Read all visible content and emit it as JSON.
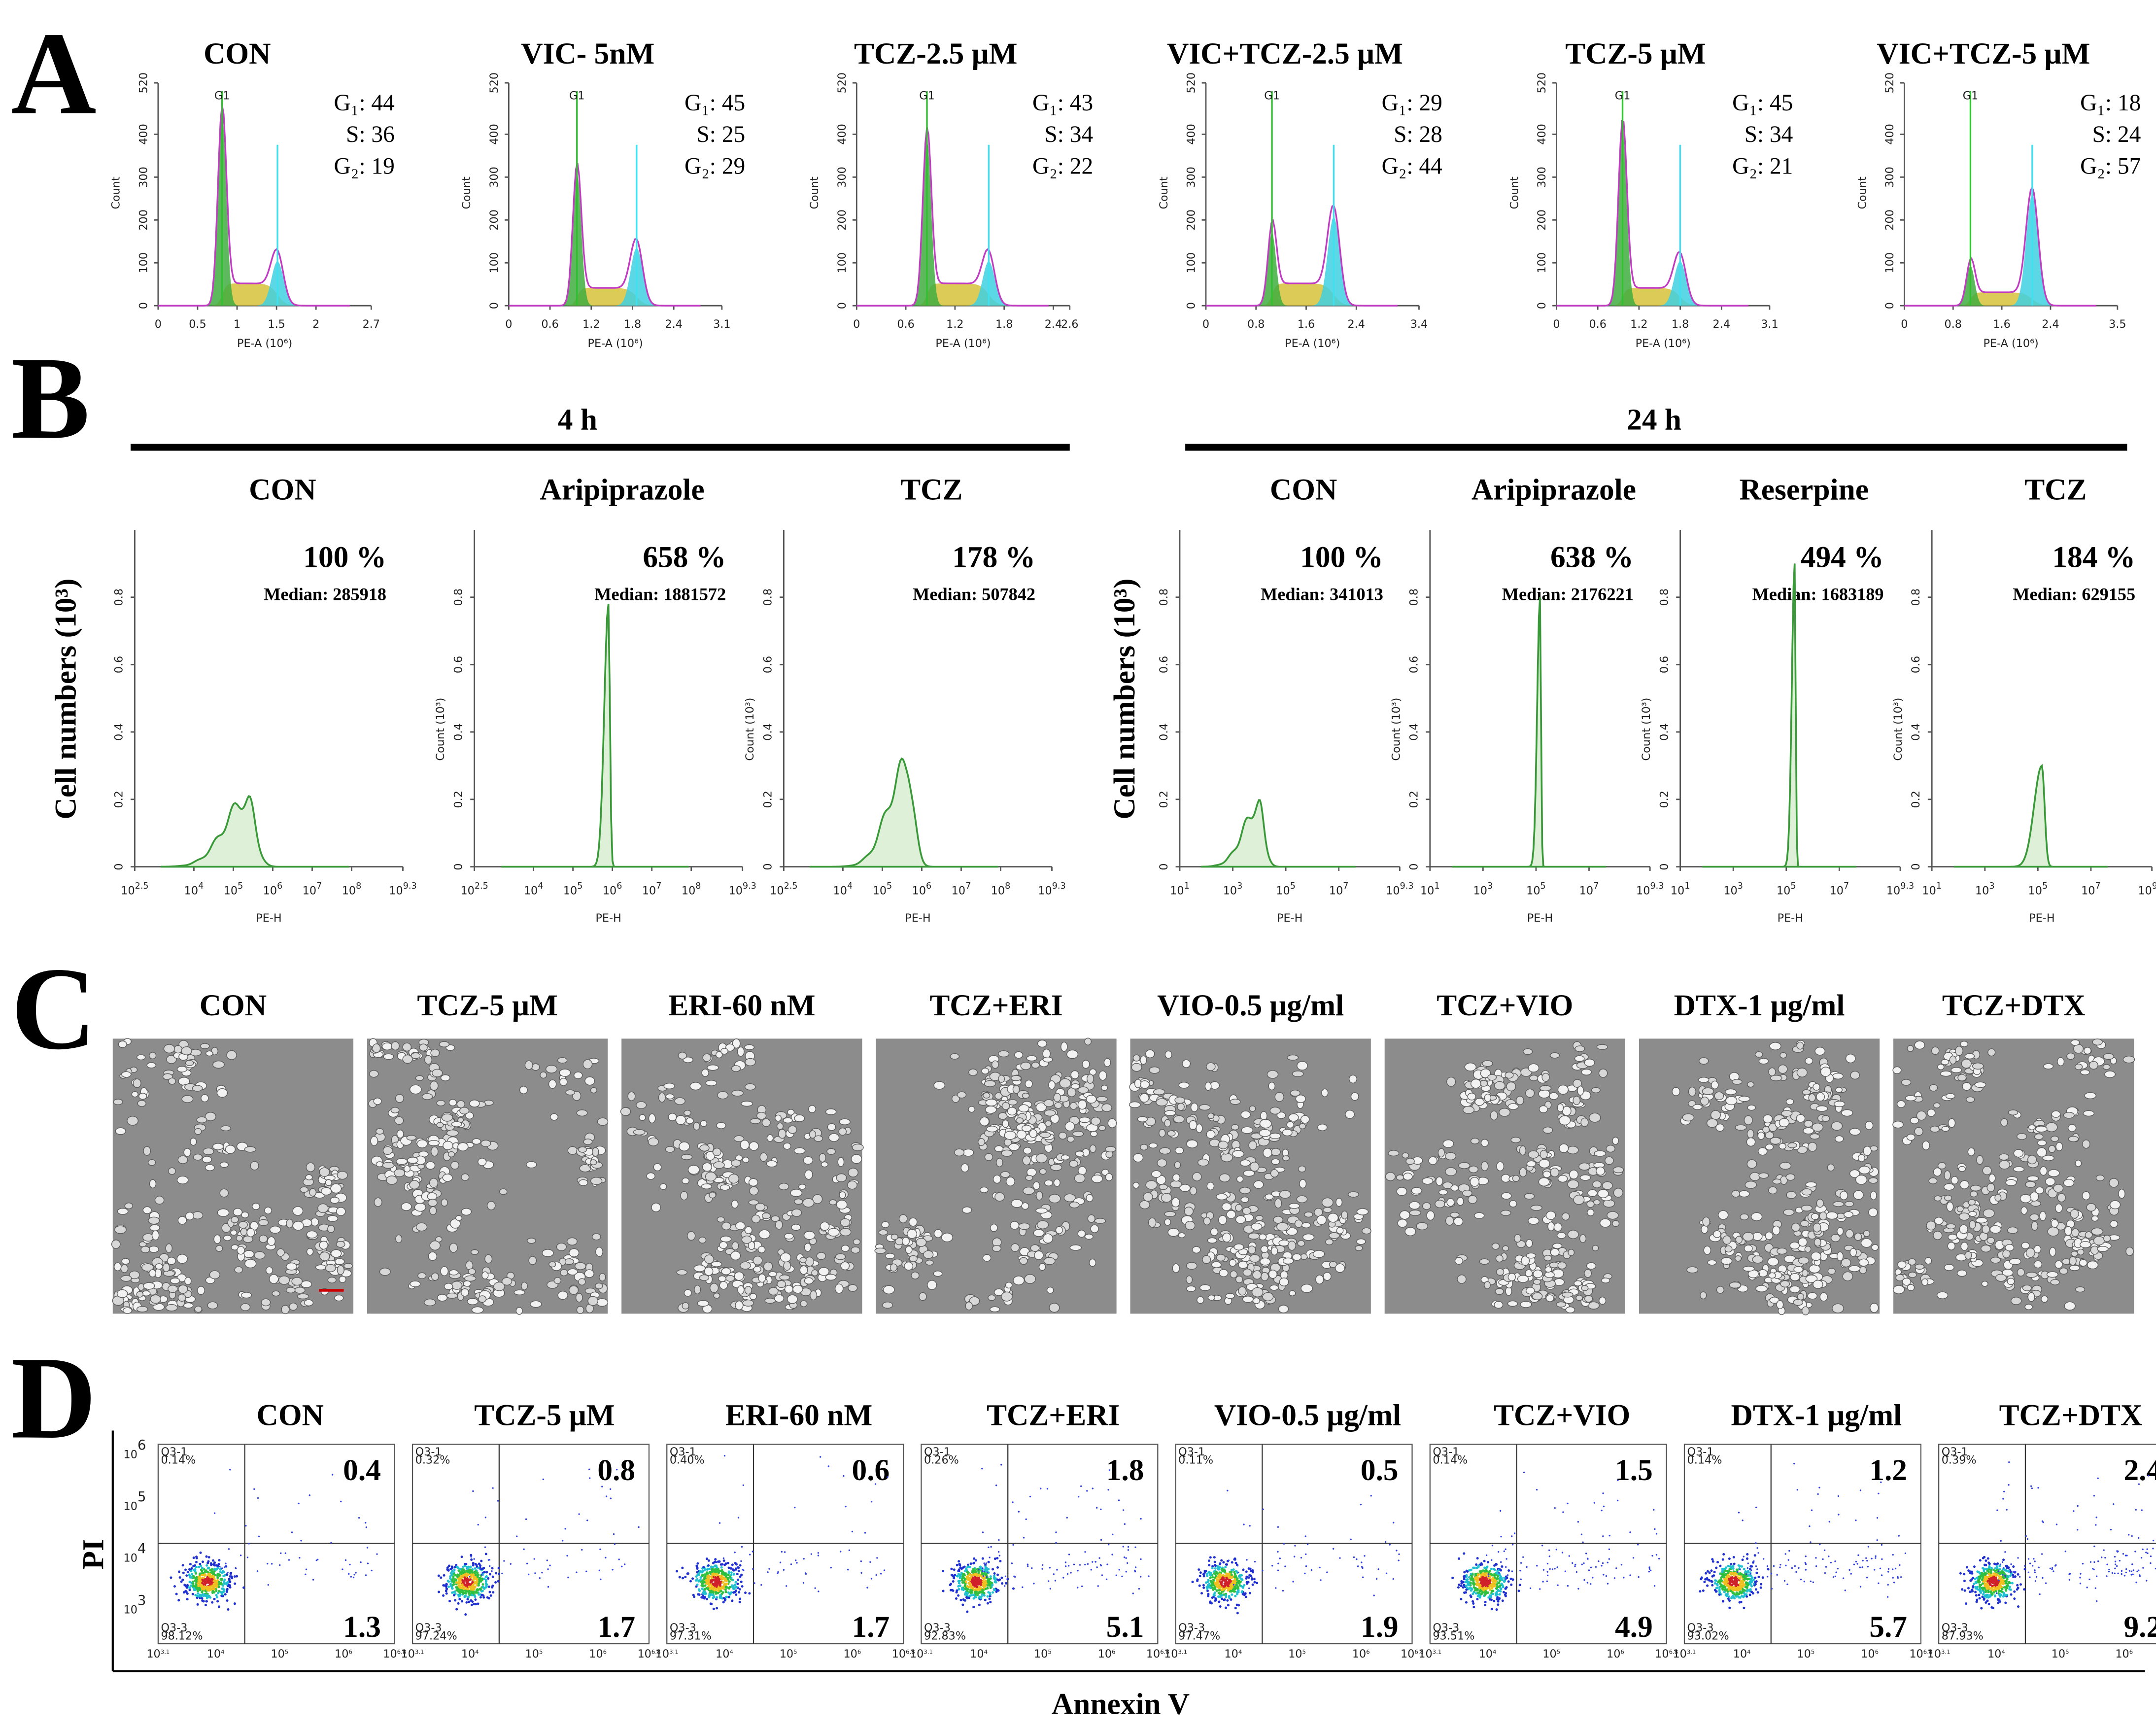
{
  "panel_A": {
    "label": "A",
    "y_label": "Count",
    "x_label": "PE-A (10⁶)",
    "peak_label": "G1",
    "yticks": [
      0,
      100,
      200,
      300,
      400,
      520
    ],
    "plots": [
      {
        "title": "CON",
        "stats": [
          "G₁: 44",
          "S: 36",
          "G₂: 19"
        ],
        "xticks": [
          0,
          0.5,
          1,
          1.5,
          2,
          2.7
        ]
      },
      {
        "title": "VIC- 5nM",
        "stats": [
          "G₁: 45",
          "S: 25",
          "G₂: 29"
        ],
        "xticks": [
          0,
          0.6,
          1.2,
          1.8,
          2.4,
          3.1
        ]
      },
      {
        "title": "TCZ-2.5 μM",
        "stats": [
          "G₁: 43",
          "S: 34",
          "G₂: 22"
        ],
        "xticks": [
          0,
          0.6,
          1.2,
          1.8,
          2.4,
          2.6
        ]
      },
      {
        "title": "VIC+TCZ-2.5 μM",
        "stats": [
          "G₁: 29",
          "S: 28",
          "G₂: 44"
        ],
        "xticks": [
          0,
          0.8,
          1.6,
          2.4,
          3.4
        ]
      },
      {
        "title": "TCZ-5 μM",
        "stats": [
          "G₁: 45",
          "S: 34",
          "G₂: 21"
        ],
        "xticks": [
          0,
          0.6,
          1.2,
          1.8,
          2.4,
          3.1
        ]
      },
      {
        "title": "VIC+TCZ-5 μM",
        "stats": [
          "G₁: 18",
          "S: 24",
          "G₂: 57"
        ],
        "xticks": [
          0,
          0.8,
          1.6,
          2.4,
          3.5
        ]
      }
    ]
  },
  "panel_B": {
    "label": "B",
    "y_label": "Cell numbers (10³)",
    "x_label": "PE-H",
    "count_label": "Count (10³)",
    "ylim": [
      0,
      1
    ],
    "yticks": [
      0,
      0.2,
      0.4,
      0.6,
      0.8
    ],
    "groups": [
      {
        "title": "4 h",
        "xticks": [
          {
            "base": "10",
            "exp": 2.5
          },
          {
            "base": "10",
            "exp": 4
          },
          {
            "base": "10",
            "exp": 5
          },
          {
            "base": "10",
            "exp": 6
          },
          {
            "base": "10",
            "exp": 7
          },
          {
            "base": "10",
            "exp": 8
          },
          {
            "base": "10",
            "exp": 9.3
          }
        ],
        "plots": [
          {
            "title": "CON",
            "percent": "100 %",
            "median": "Median: 285918"
          },
          {
            "title": "Aripiprazole",
            "percent": "658 %",
            "median": "Median: 1881572"
          },
          {
            "title": "TCZ",
            "percent": "178 %",
            "median": "Median: 507842"
          }
        ]
      },
      {
        "title": "24 h",
        "xticks": [
          {
            "base": "10",
            "exp": 1
          },
          {
            "base": "10",
            "exp": 3
          },
          {
            "base": "10",
            "exp": 5
          },
          {
            "base": "10",
            "exp": 7
          },
          {
            "base": "10",
            "exp": 9.3
          }
        ],
        "plots": [
          {
            "title": "CON",
            "percent": "100 %",
            "median": "Median: 341013"
          },
          {
            "title": "Aripiprazole",
            "percent": "638 %",
            "median": "Median: 2176221"
          },
          {
            "title": "Reserpine",
            "percent": "494 %",
            "median": "Median: 1683189"
          },
          {
            "title": "TCZ",
            "percent": "184 %",
            "median": "Median: 629155"
          }
        ]
      }
    ]
  },
  "panel_C": {
    "label": "C",
    "titles": [
      "CON",
      "TCZ-5 μM",
      "ERI-60 nM",
      "TCZ+ERI",
      "VIO-0.5 μg/ml",
      "TCZ+VIO",
      "DTX-1 μg/ml",
      "TCZ+DTX"
    ]
  },
  "panel_D": {
    "label": "D",
    "y_label": "PI",
    "x_label": "Annexin V",
    "q1_label": "Q3-1",
    "q3_label": "Q3-3",
    "yticks": [
      {
        "base": "10",
        "exp": 6
      },
      {
        "base": "10",
        "exp": 5
      },
      {
        "base": "10",
        "exp": 4
      },
      {
        "base": "10",
        "exp": 3
      }
    ],
    "xticks": [
      {
        "base": "10",
        "exp": 3.1
      },
      {
        "base": "10",
        "exp": 4
      },
      {
        "base": "10",
        "exp": 5
      },
      {
        "base": "10",
        "exp": 6
      },
      {
        "base": "10",
        "exp": 6.8
      }
    ],
    "plots": [
      {
        "title": "CON",
        "upper_right": "0.4",
        "lower_right": "1.3",
        "q1": "0.14%",
        "q3": "98.12%"
      },
      {
        "title": "TCZ-5 μM",
        "upper_right": "0.8",
        "lower_right": "1.7",
        "q1": "0.32%",
        "q3": "97.24%"
      },
      {
        "title": "ERI-60 nM",
        "upper_right": "0.6",
        "lower_right": "1.7",
        "q1": "0.40%",
        "q3": "97.31%"
      },
      {
        "title": "TCZ+ERI",
        "upper_right": "1.8",
        "lower_right": "5.1",
        "q1": "0.26%",
        "q3": "92.83%"
      },
      {
        "title": "VIO-0.5 μg/ml",
        "upper_right": "0.5",
        "lower_right": "1.9",
        "q1": "0.11%",
        "q3": "97.47%"
      },
      {
        "title": "TCZ+VIO",
        "upper_right": "1.5",
        "lower_right": "4.9",
        "q1": "0.14%",
        "q3": "93.51%"
      },
      {
        "title": "DTX-1 μg/ml",
        "upper_right": "1.2",
        "lower_right": "5.7",
        "q1": "0.14%",
        "q3": "93.02%"
      },
      {
        "title": "TCZ+DTX",
        "upper_right": "2.4",
        "lower_right": "9.2",
        "q1": "0.39%",
        "q3": "87.93%"
      }
    ]
  }
}
